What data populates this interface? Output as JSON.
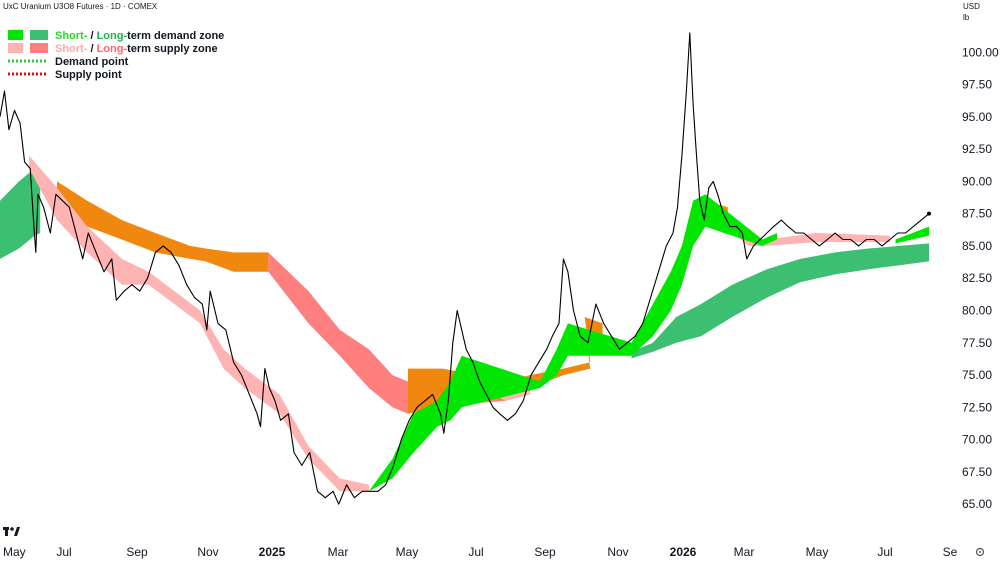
{
  "header": {
    "title": "UxC Uranium U3O8 Futures · 1D · COMEX",
    "currency": "USD",
    "unit": "lb"
  },
  "legend": {
    "demand_zone": {
      "short": "Short-",
      "sep": " / ",
      "long": "Long-",
      "rest": "term demand zone"
    },
    "supply_zone": {
      "short": "Short-",
      "sep": " / ",
      "long": "Long-",
      "rest": "term supply zone"
    },
    "demand_point": "Demand point",
    "supply_point": "Supply point"
  },
  "colors": {
    "short_demand": "#00e600",
    "long_demand": "#3dbf72",
    "short_supply": "#ffb3b3",
    "long_supply": "#ff7f7f",
    "overlap": "#f0870f",
    "demand_point": "#33cc33",
    "supply_point": "#e01010",
    "price": "#000000",
    "short_green_text": "#22dd22",
    "long_green_text": "#24b24a",
    "short_pink_text": "#ffaaaa",
    "long_pink_text": "#ff6666"
  },
  "chart_data": {
    "type": "line",
    "x_ticks": [
      "May",
      "Jul",
      "Sep",
      "Nov",
      "2025",
      "Mar",
      "May",
      "Jul",
      "Sep",
      "Nov",
      "2026",
      "Mar",
      "May",
      "Jul",
      "Se"
    ],
    "x_ticks_bold": [
      "2025",
      "2026"
    ],
    "y_ticks": [
      "100.00",
      "97.50",
      "95.00",
      "92.50",
      "90.00",
      "87.50",
      "85.00",
      "82.50",
      "80.00",
      "77.50",
      "75.00",
      "72.50",
      "70.00",
      "67.50",
      "65.00"
    ],
    "ylim": [
      63.0,
      102.5
    ],
    "x_date_range": [
      "2024-05-15",
      "2026-09-10"
    ],
    "series": [
      {
        "name": "Price",
        "points": [
          [
            "2024-05-15",
            95.0
          ],
          [
            "2024-05-19",
            97.0
          ],
          [
            "2024-05-23",
            94.0
          ],
          [
            "2024-05-28",
            95.5
          ],
          [
            "2024-06-02",
            94.5
          ],
          [
            "2024-06-06",
            91.5
          ],
          [
            "2024-06-11",
            91.0
          ],
          [
            "2024-06-14",
            87.0
          ],
          [
            "2024-06-16",
            84.5
          ],
          [
            "2024-06-18",
            89.0
          ],
          [
            "2024-06-23",
            88.0
          ],
          [
            "2024-06-29",
            86.0
          ],
          [
            "2024-07-04",
            89.0
          ],
          [
            "2024-07-10",
            88.5
          ],
          [
            "2024-07-16",
            88.0
          ],
          [
            "2024-07-22",
            86.0
          ],
          [
            "2024-07-28",
            84.0
          ],
          [
            "2024-08-02",
            86.0
          ],
          [
            "2024-08-09",
            84.5
          ],
          [
            "2024-08-16",
            83.0
          ],
          [
            "2024-08-23",
            84.0
          ],
          [
            "2024-08-27",
            80.8
          ],
          [
            "2024-09-03",
            81.5
          ],
          [
            "2024-09-10",
            82.0
          ],
          [
            "2024-09-17",
            81.5
          ],
          [
            "2024-09-24",
            82.5
          ],
          [
            "2024-10-01",
            84.5
          ],
          [
            "2024-10-08",
            85.0
          ],
          [
            "2024-10-15",
            84.5
          ],
          [
            "2024-10-22",
            83.5
          ],
          [
            "2024-10-29",
            82.0
          ],
          [
            "2024-11-05",
            81.0
          ],
          [
            "2024-11-12",
            80.5
          ],
          [
            "2024-11-16",
            78.5
          ],
          [
            "2024-11-19",
            81.5
          ],
          [
            "2024-11-26",
            79.0
          ],
          [
            "2024-12-03",
            78.5
          ],
          [
            "2024-12-10",
            76.0
          ],
          [
            "2024-12-17",
            75.0
          ],
          [
            "2024-12-24",
            73.5
          ],
          [
            "2024-12-31",
            72.0
          ],
          [
            "2025-01-03",
            71.0
          ],
          [
            "2025-01-07",
            75.5
          ],
          [
            "2025-01-11",
            74.0
          ],
          [
            "2025-01-16",
            73.0
          ],
          [
            "2025-01-21",
            71.5
          ],
          [
            "2025-01-28",
            72.0
          ],
          [
            "2025-02-02",
            69.0
          ],
          [
            "2025-02-09",
            68.0
          ],
          [
            "2025-02-16",
            69.0
          ],
          [
            "2025-02-23",
            66.0
          ],
          [
            "2025-03-02",
            65.5
          ],
          [
            "2025-03-09",
            66.0
          ],
          [
            "2025-03-14",
            65.0
          ],
          [
            "2025-03-21",
            66.5
          ],
          [
            "2025-03-28",
            65.5
          ],
          [
            "2025-04-04",
            66.0
          ],
          [
            "2025-04-11",
            66.0
          ],
          [
            "2025-04-18",
            66.0
          ],
          [
            "2025-04-25",
            66.5
          ],
          [
            "2025-05-02",
            68.0
          ],
          [
            "2025-05-09",
            70.0
          ],
          [
            "2025-05-16",
            71.5
          ],
          [
            "2025-05-23",
            72.5
          ],
          [
            "2025-05-30",
            73.0
          ],
          [
            "2025-06-06",
            73.5
          ],
          [
            "2025-06-13",
            72.0
          ],
          [
            "2025-06-16",
            70.5
          ],
          [
            "2025-06-20",
            73.0
          ],
          [
            "2025-06-24",
            77.5
          ],
          [
            "2025-06-28",
            80.0
          ],
          [
            "2025-07-02",
            78.5
          ],
          [
            "2025-07-06",
            77.0
          ],
          [
            "2025-07-12",
            76.0
          ],
          [
            "2025-07-18",
            74.5
          ],
          [
            "2025-07-24",
            73.5
          ],
          [
            "2025-07-30",
            72.5
          ],
          [
            "2025-08-05",
            72.0
          ],
          [
            "2025-08-12",
            71.5
          ],
          [
            "2025-08-19",
            72.0
          ],
          [
            "2025-08-26",
            73.0
          ],
          [
            "2025-09-02",
            75.0
          ],
          [
            "2025-09-09",
            76.0
          ],
          [
            "2025-09-16",
            77.0
          ],
          [
            "2025-09-21",
            78.0
          ],
          [
            "2025-09-27",
            79.0
          ],
          [
            "2025-10-01",
            84.0
          ],
          [
            "2025-10-05",
            83.0
          ],
          [
            "2025-10-10",
            80.0
          ],
          [
            "2025-10-16",
            78.0
          ],
          [
            "2025-10-23",
            77.5
          ],
          [
            "2025-10-30",
            80.5
          ],
          [
            "2025-11-06",
            79.0
          ],
          [
            "2025-11-13",
            78.0
          ],
          [
            "2025-11-20",
            77.0
          ],
          [
            "2025-11-27",
            77.5
          ],
          [
            "2025-12-04",
            78.0
          ],
          [
            "2025-12-11",
            79.0
          ],
          [
            "2025-12-18",
            81.0
          ],
          [
            "2025-12-25",
            83.0
          ],
          [
            "2026-01-01",
            85.0
          ],
          [
            "2026-01-07",
            86.0
          ],
          [
            "2026-01-11",
            88.0
          ],
          [
            "2026-01-15",
            92.0
          ],
          [
            "2026-01-19",
            97.0
          ],
          [
            "2026-01-22",
            101.5
          ],
          [
            "2026-01-25",
            96.0
          ],
          [
            "2026-01-28",
            92.0
          ],
          [
            "2026-01-31",
            88.5
          ],
          [
            "2026-02-04",
            87.0
          ],
          [
            "2026-02-08",
            89.5
          ],
          [
            "2026-02-12",
            90.0
          ],
          [
            "2026-02-16",
            89.0
          ],
          [
            "2026-02-21",
            87.5
          ],
          [
            "2026-02-27",
            86.5
          ],
          [
            "2026-03-05",
            86.5
          ],
          [
            "2026-03-10",
            86.0
          ],
          [
            "2026-03-14",
            84.0
          ],
          [
            "2026-03-20",
            85.0
          ],
          [
            "2026-03-26",
            85.5
          ],
          [
            "2026-04-01",
            86.0
          ],
          [
            "2026-04-07",
            86.5
          ],
          [
            "2026-04-14",
            87.0
          ],
          [
            "2026-04-20",
            86.5
          ],
          [
            "2026-04-27",
            86.0
          ],
          [
            "2026-05-04",
            86.0
          ],
          [
            "2026-05-11",
            85.5
          ],
          [
            "2026-05-18",
            85.0
          ],
          [
            "2026-05-25",
            85.5
          ],
          [
            "2026-06-01",
            86.0
          ],
          [
            "2026-06-08",
            85.5
          ],
          [
            "2026-06-15",
            85.5
          ],
          [
            "2026-06-22",
            85.0
          ],
          [
            "2026-06-29",
            85.5
          ],
          [
            "2026-07-06",
            85.5
          ],
          [
            "2026-07-13",
            85.0
          ],
          [
            "2026-07-20",
            85.5
          ],
          [
            "2026-07-27",
            86.0
          ],
          [
            "2026-08-03",
            86.0
          ],
          [
            "2026-08-10",
            86.5
          ],
          [
            "2026-08-17",
            87.0
          ],
          [
            "2026-08-24",
            87.5
          ]
        ]
      },
      {
        "name": "Short-term demand zone",
        "bands": [
          [
            "2025-04-10",
            66.0,
            66.0
          ],
          [
            "2025-05-01",
            68.5,
            67.0
          ],
          [
            "2025-05-20",
            72.0,
            69.0
          ],
          [
            "2025-06-10",
            73.0,
            71.0
          ],
          [
            "2025-06-22",
            74.5,
            71.5
          ],
          [
            "2025-07-02",
            76.5,
            72.5
          ],
          [
            "2025-09-10",
            74.5,
            74.0
          ],
          [
            "2025-09-25",
            77.0,
            75.0
          ],
          [
            "2025-10-05",
            79.0,
            76.5
          ],
          [
            "2025-12-01",
            77.5,
            76.5
          ],
          [
            "2025-12-20",
            80.5,
            78.0
          ],
          [
            "2026-01-05",
            83.0,
            80.0
          ],
          [
            "2026-01-15",
            85.0,
            82.0
          ],
          [
            "2026-01-25",
            88.5,
            85.0
          ],
          [
            "2026-02-05",
            89.0,
            86.5
          ],
          [
            "2026-03-28",
            85.5,
            85.0
          ],
          [
            "2026-04-10",
            86.0,
            85.5
          ],
          [
            "2026-07-25",
            85.5,
            85.2
          ],
          [
            "2026-08-24",
            86.5,
            85.8
          ]
        ]
      },
      {
        "name": "Long-term demand zone",
        "bands": [
          [
            "2024-05-15",
            88.5,
            84.0
          ],
          [
            "2024-06-01",
            90.0,
            84.8
          ],
          [
            "2024-06-15",
            91.0,
            85.8
          ],
          [
            "2024-06-20",
            91.0,
            86.0
          ],
          [
            "2025-12-01",
            76.8,
            76.3
          ],
          [
            "2025-12-20",
            77.5,
            76.8
          ],
          [
            "2026-01-10",
            79.5,
            77.5
          ],
          [
            "2026-02-01",
            80.5,
            78.0
          ],
          [
            "2026-03-01",
            82.0,
            79.5
          ],
          [
            "2026-04-01",
            83.2,
            81.0
          ],
          [
            "2026-05-01",
            84.0,
            82.2
          ],
          [
            "2026-06-01",
            84.5,
            82.8
          ],
          [
            "2026-07-01",
            84.8,
            83.2
          ],
          [
            "2026-08-24",
            85.2,
            83.8
          ]
        ]
      },
      {
        "name": "Short-term supply zone",
        "bands": [
          [
            "2024-06-10",
            92.0,
            91.0
          ],
          [
            "2024-07-05",
            89.5,
            87.0
          ],
          [
            "2024-08-01",
            86.5,
            84.5
          ],
          [
            "2024-09-01",
            84.0,
            82.0
          ],
          [
            "2024-09-25",
            83.0,
            82.0
          ],
          [
            "2024-11-10",
            80.0,
            79.0
          ],
          [
            "2024-12-01",
            77.0,
            75.5
          ],
          [
            "2024-12-20",
            75.5,
            74.0
          ],
          [
            "2025-01-20",
            73.5,
            72.0
          ],
          [
            "2025-02-15",
            69.5,
            68.5
          ],
          [
            "2025-03-15",
            67.0,
            66.0
          ],
          [
            "2025-04-10",
            66.5,
            66.0
          ],
          [
            "2025-07-20",
            75.0,
            74.0
          ],
          [
            "2025-08-10",
            73.5,
            73.0
          ],
          [
            "2025-09-01",
            74.0,
            73.5
          ],
          [
            "2026-02-25",
            87.5,
            86.5
          ],
          [
            "2026-03-15",
            85.5,
            85.0
          ],
          [
            "2026-04-01",
            85.5,
            85.0
          ],
          [
            "2026-05-15",
            86.0,
            85.3
          ],
          [
            "2026-07-20",
            85.8,
            85.3
          ]
        ]
      },
      {
        "name": "Long-term supply zone",
        "bands": [
          [
            "2025-01-10",
            84.5,
            83.0
          ],
          [
            "2025-02-15",
            81.5,
            79.0
          ],
          [
            "2025-03-15",
            78.5,
            76.5
          ],
          [
            "2025-04-10",
            77.0,
            74.0
          ],
          [
            "2025-05-01",
            75.0,
            72.5
          ],
          [
            "2025-05-15",
            74.5,
            72.0
          ],
          [
            "2025-06-01",
            75.0,
            72.5
          ],
          [
            "2025-08-10",
            74.0,
            73.0
          ],
          [
            "2025-09-01",
            74.0,
            73.5
          ]
        ]
      },
      {
        "name": "Overlap zone",
        "bands": [
          [
            "2024-07-05",
            90.0,
            87.5
          ],
          [
            "2024-08-01",
            88.5,
            86.5
          ],
          [
            "2024-09-01",
            87.0,
            85.5
          ],
          [
            "2024-10-01",
            86.0,
            84.5
          ],
          [
            "2024-11-01",
            85.0,
            84.0
          ],
          [
            "2024-11-15",
            84.8,
            83.8
          ],
          [
            "2024-12-10",
            84.5,
            83.0
          ],
          [
            "2025-01-10",
            84.5,
            83.0
          ],
          [
            "2025-05-15",
            75.5,
            72.0
          ],
          [
            "2025-06-15",
            75.5,
            72.5
          ],
          [
            "2025-07-15",
            75.0,
            73.5
          ],
          [
            "2025-08-10",
            74.5,
            73.0
          ],
          [
            "2025-09-01",
            75.0,
            74.0
          ],
          [
            "2025-10-01",
            75.5,
            75.0
          ],
          [
            "2025-10-25",
            76.0,
            75.5
          ],
          [
            "2025-10-20",
            79.5,
            78.5
          ],
          [
            "2025-11-05",
            79.0,
            78.0
          ],
          [
            "2026-02-05",
            88.5,
            86.5
          ],
          [
            "2026-02-25",
            88.0,
            86.5
          ]
        ]
      }
    ]
  }
}
